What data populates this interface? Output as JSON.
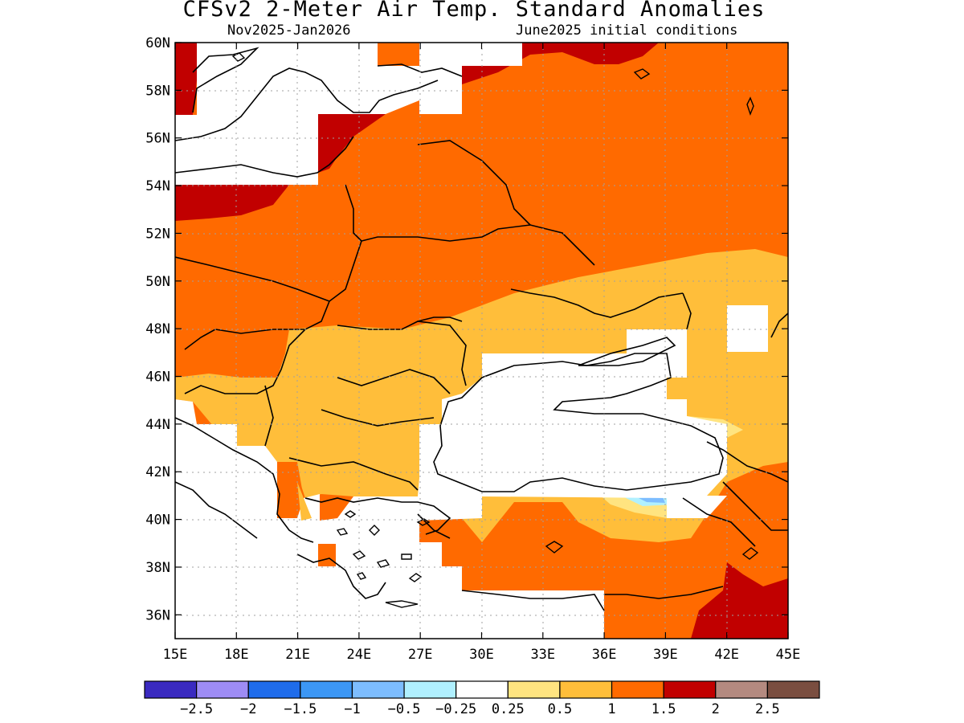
{
  "header": {
    "title": "CFSv2 2-Meter Air Temp. Standard Anomalies",
    "period": "Nov2025-Jan2026",
    "init": "June2025 initial conditions"
  },
  "map": {
    "lon_range": [
      15,
      45
    ],
    "lat_range": [
      35,
      60
    ],
    "lon_ticks": [
      "15E",
      "18E",
      "21E",
      "24E",
      "27E",
      "30E",
      "33E",
      "36E",
      "39E",
      "42E",
      "45E"
    ],
    "lat_ticks": [
      "60N",
      "58N",
      "56N",
      "54N",
      "52N",
      "50N",
      "48N",
      "46N",
      "44N",
      "42N",
      "40N",
      "38N",
      "36N"
    ],
    "grid": "dotted",
    "dominant_anomaly_colors": {
      "above_0.25": "#ffe480",
      "above_0.5": "#ffbe3a",
      "above_1": "#ff6a00",
      "above_1.5": "#c10000",
      "above_2": "#b48a80",
      "below_-0.5": "#7dbdff",
      "near_zero": "#ffffff"
    }
  },
  "colorbar": {
    "colors": [
      "#3a2ac0",
      "#9e8cf5",
      "#1f6ceb",
      "#3c97f5",
      "#7dbdff",
      "#b0f0ff",
      "#ffffff",
      "#ffe480",
      "#ffbe3a",
      "#ff6a00",
      "#c10000",
      "#b48a80",
      "#7a4e40"
    ],
    "labels": [
      "-2.5",
      "-2",
      "-1.5",
      "-1",
      "-0.5",
      "-0.25",
      "0.25",
      "0.5",
      "1",
      "1.5",
      "2",
      "2.5"
    ]
  }
}
